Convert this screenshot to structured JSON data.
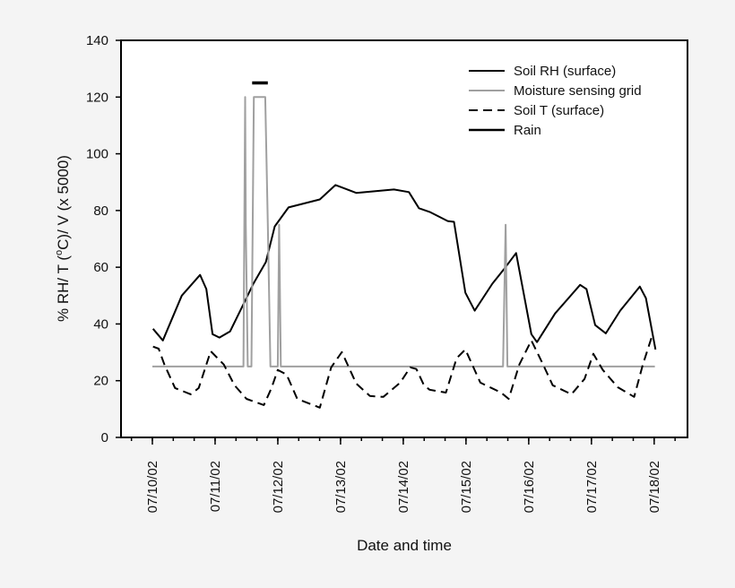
{
  "chart_data": {
    "type": "line",
    "title": "",
    "xlabel": "Date and time",
    "ylabel": {
      "before": "% RH/ T (",
      "sup": "o",
      "after": "C)/ V (x 5000)"
    },
    "xlim": [
      "2002-07-09T12:00",
      "2002-07-18T12:45"
    ],
    "ylim": [
      0,
      140
    ],
    "yticks": [
      0,
      20,
      40,
      60,
      80,
      100,
      120,
      140
    ],
    "xticks": [
      {
        "date": "2002-07-10T00:00",
        "label": "07/10/02"
      },
      {
        "date": "2002-07-11T00:00",
        "label": "07/11/02"
      },
      {
        "date": "2002-07-12T00:00",
        "label": "07/12/02"
      },
      {
        "date": "2002-07-13T00:00",
        "label": "07/13/02"
      },
      {
        "date": "2002-07-14T00:00",
        "label": "07/14/02"
      },
      {
        "date": "2002-07-15T00:00",
        "label": "07/15/02"
      },
      {
        "date": "2002-07-16T00:00",
        "label": "07/16/02"
      },
      {
        "date": "2002-07-17T00:00",
        "label": "07/17/02"
      },
      {
        "date": "2002-07-18T00:00",
        "label": "07/18/02"
      }
    ],
    "minor_tick_interval_hours": 8,
    "grid": false,
    "legend_placement": "top-right",
    "series": [
      {
        "name": "Soil RH (surface)",
        "color": "#000000",
        "style": "solid",
        "points": [
          [
            "2002-07-10T00:15",
            38.3
          ],
          [
            "2002-07-10T04:00",
            34.2
          ],
          [
            "2002-07-10T11:15",
            50
          ],
          [
            "2002-07-10T18:15",
            57.3
          ],
          [
            "2002-07-10T20:40",
            52.3
          ],
          [
            "2002-07-10T23:00",
            36.4
          ],
          [
            "2002-07-11T01:40",
            35.2
          ],
          [
            "2002-07-11T05:45",
            37.4
          ],
          [
            "2002-07-11T10:20",
            46
          ],
          [
            "2002-07-11T14:40",
            54.2
          ],
          [
            "2002-07-11T19:25",
            61.8
          ],
          [
            "2002-07-11T22:50",
            74.4
          ],
          [
            "2002-07-12T04:05",
            81.1
          ],
          [
            "2002-07-12T16:05",
            83.9
          ],
          [
            "2002-07-12T22:05",
            89
          ],
          [
            "2002-07-13T06:00",
            86.2
          ],
          [
            "2002-07-13T20:25",
            87.4
          ],
          [
            "2002-07-14T02:10",
            86.5
          ],
          [
            "2002-07-14T06:00",
            80.8
          ],
          [
            "2002-07-14T10:05",
            79.5
          ],
          [
            "2002-07-14T17:00",
            76.3
          ],
          [
            "2002-07-14T19:25",
            76
          ],
          [
            "2002-07-14T23:45",
            51
          ],
          [
            "2002-07-15T03:20",
            44.7
          ],
          [
            "2002-07-15T10:05",
            54.2
          ],
          [
            "2002-07-15T14:40",
            59.5
          ],
          [
            "2002-07-15T19:10",
            65
          ],
          [
            "2002-07-16T01:00",
            36.4
          ],
          [
            "2002-07-16T03:10",
            33.6
          ],
          [
            "2002-07-16T10:05",
            43.7
          ],
          [
            "2002-07-16T19:40",
            53.8
          ],
          [
            "2002-07-16T22:05",
            52.3
          ],
          [
            "2002-07-17T01:25",
            39.6
          ],
          [
            "2002-07-17T05:30",
            36.7
          ],
          [
            "2002-07-17T11:00",
            44.7
          ],
          [
            "2002-07-17T18:30",
            53.2
          ],
          [
            "2002-07-17T20:50",
            49.1
          ],
          [
            "2002-07-18T00:30",
            31
          ]
        ]
      },
      {
        "name": "Moisture sensing grid",
        "color": "#a0a0a0",
        "style": "solid",
        "points": [
          [
            "2002-07-10T00:00",
            25
          ],
          [
            "2002-07-11T10:50",
            25
          ],
          [
            "2002-07-11T11:30",
            120
          ],
          [
            "2002-07-11T11:45",
            75
          ],
          [
            "2002-07-11T12:30",
            25
          ],
          [
            "2002-07-11T13:55",
            25
          ],
          [
            "2002-07-11T14:50",
            120
          ],
          [
            "2002-07-11T19:10",
            120
          ],
          [
            "2002-07-11T20:10",
            75
          ],
          [
            "2002-07-11T21:10",
            25
          ],
          [
            "2002-07-12T00:00",
            25
          ],
          [
            "2002-07-12T00:30",
            75
          ],
          [
            "2002-07-12T01:10",
            25
          ],
          [
            "2002-07-15T14:10",
            25
          ],
          [
            "2002-07-15T15:10",
            75
          ],
          [
            "2002-07-15T15:50",
            25
          ],
          [
            "2002-07-18T00:15",
            25
          ]
        ]
      },
      {
        "name": "Soil T (surface)",
        "color": "#000000",
        "style": "dashed",
        "points": [
          [
            "2002-07-10T00:15",
            32
          ],
          [
            "2002-07-10T02:25",
            31.3
          ],
          [
            "2002-07-10T04:35",
            25.7
          ],
          [
            "2002-07-10T08:40",
            17.4
          ],
          [
            "2002-07-10T14:40",
            15.2
          ],
          [
            "2002-07-10T17:45",
            17.4
          ],
          [
            "2002-07-10T22:20",
            30.4
          ],
          [
            "2002-07-11T03:20",
            25.7
          ],
          [
            "2002-07-11T07:25",
            18.4
          ],
          [
            "2002-07-11T12:00",
            13.6
          ],
          [
            "2002-07-11T18:40",
            11.4
          ],
          [
            "2002-07-11T21:35",
            17.4
          ],
          [
            "2002-07-12T00:00",
            23.8
          ],
          [
            "2002-07-12T03:20",
            22.2
          ],
          [
            "2002-07-12T07:25",
            13.6
          ],
          [
            "2002-07-12T16:05",
            10.5
          ],
          [
            "2002-07-12T20:25",
            24.7
          ],
          [
            "2002-07-13T00:30",
            30.1
          ],
          [
            "2002-07-13T06:00",
            19
          ],
          [
            "2002-07-13T11:15",
            14.6
          ],
          [
            "2002-07-13T16:20",
            14.3
          ],
          [
            "2002-07-13T22:50",
            19.3
          ],
          [
            "2002-07-14T02:40",
            24.7
          ],
          [
            "2002-07-14T05:00",
            24.1
          ],
          [
            "2002-07-14T07:55",
            18.4
          ],
          [
            "2002-07-14T10:05",
            16.8
          ],
          [
            "2002-07-14T16:20",
            15.8
          ],
          [
            "2002-07-14T20:25",
            27.9
          ],
          [
            "2002-07-14T23:45",
            31
          ],
          [
            "2002-07-15T05:30",
            19.3
          ],
          [
            "2002-07-15T13:25",
            15.8
          ],
          [
            "2002-07-15T16:20",
            13.6
          ],
          [
            "2002-07-15T20:25",
            25.7
          ],
          [
            "2002-07-16T01:00",
            34.2
          ],
          [
            "2002-07-16T05:30",
            25.7
          ],
          [
            "2002-07-16T09:10",
            18.4
          ],
          [
            "2002-07-16T16:20",
            15.2
          ],
          [
            "2002-07-16T21:20",
            20.6
          ],
          [
            "2002-07-17T00:45",
            29.5
          ],
          [
            "2002-07-17T04:20",
            23.8
          ],
          [
            "2002-07-17T10:05",
            17.7
          ],
          [
            "2002-07-17T16:20",
            14.3
          ],
          [
            "2002-07-17T19:40",
            25.7
          ],
          [
            "2002-07-17T23:00",
            35.2
          ]
        ]
      },
      {
        "name": "Rain",
        "color": "#000000",
        "style": "solid-thick",
        "points": [
          [
            "2002-07-11T14:10",
            125
          ],
          [
            "2002-07-11T20:10",
            125
          ]
        ]
      }
    ]
  }
}
